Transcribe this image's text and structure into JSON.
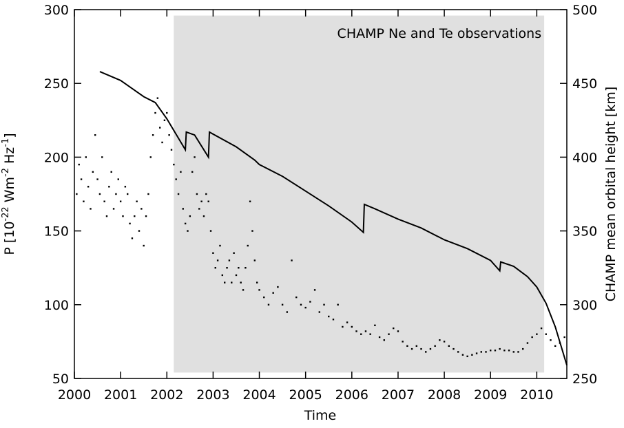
{
  "chart_data": {
    "type": "combo",
    "annotation": "CHAMP Ne and Te observations",
    "xlabel": "Time",
    "ylabel": [
      "P [10",
      "-22",
      " Wm",
      "-2",
      " Hz",
      "-1",
      "]"
    ],
    "y2label": "CHAMP mean orbital height [km]",
    "xlim": [
      2000,
      2010.65
    ],
    "ylim": [
      50,
      300
    ],
    "y2lim": [
      250,
      500
    ],
    "xticks": [
      2000,
      2001,
      2002,
      2003,
      2004,
      2005,
      2006,
      2007,
      2008,
      2009,
      2010
    ],
    "yticks": [
      50,
      100,
      150,
      200,
      250,
      300
    ],
    "y2ticks": [
      250,
      300,
      350,
      400,
      450,
      500
    ],
    "shade_x": [
      2002.15,
      2010.16
    ],
    "shade_y": [
      54,
      296
    ],
    "shade_color": "#e0e0e0",
    "series": [
      {
        "type": "scatter",
        "color": "#000000",
        "x": [
          2000.05,
          2000.1,
          2000.15,
          2000.2,
          2000.25,
          2000.3,
          2000.35,
          2000.4,
          2000.45,
          2000.5,
          2000.55,
          2000.6,
          2000.65,
          2000.7,
          2000.75,
          2000.8,
          2000.85,
          2000.9,
          2000.95,
          2001.0,
          2001.05,
          2001.1,
          2001.15,
          2001.2,
          2001.25,
          2001.3,
          2001.35,
          2001.4,
          2001.45,
          2001.5,
          2001.55,
          2001.6,
          2001.65,
          2001.7,
          2001.75,
          2001.8,
          2001.85,
          2001.9,
          2001.95,
          2002.0,
          2002.05,
          2002.1,
          2002.15,
          2002.2,
          2002.25,
          2002.3,
          2002.35,
          2002.4,
          2002.45,
          2002.5,
          2002.55,
          2002.6,
          2002.65,
          2002.7,
          2002.75,
          2002.8,
          2002.85,
          2002.9,
          2002.95,
          2003.0,
          2003.05,
          2003.1,
          2003.15,
          2003.2,
          2003.25,
          2003.3,
          2003.35,
          2003.4,
          2003.45,
          2003.5,
          2003.55,
          2003.6,
          2003.65,
          2003.7,
          2003.75,
          2003.8,
          2003.85,
          2003.9,
          2003.95,
          2004.0,
          2004.1,
          2004.2,
          2004.3,
          2004.4,
          2004.5,
          2004.6,
          2004.7,
          2004.8,
          2004.9,
          2005.0,
          2005.1,
          2005.2,
          2005.3,
          2005.4,
          2005.5,
          2005.6,
          2005.7,
          2005.8,
          2005.9,
          2006.0,
          2006.1,
          2006.2,
          2006.3,
          2006.4,
          2006.5,
          2006.6,
          2006.7,
          2006.8,
          2006.9,
          2007.0,
          2007.1,
          2007.2,
          2007.3,
          2007.4,
          2007.5,
          2007.6,
          2007.7,
          2007.8,
          2007.9,
          2008.0,
          2008.1,
          2008.2,
          2008.3,
          2008.4,
          2008.5,
          2008.6,
          2008.7,
          2008.8,
          2008.9,
          2009.0,
          2009.1,
          2009.2,
          2009.3,
          2009.4,
          2009.5,
          2009.6,
          2009.7,
          2009.8,
          2009.9,
          2010.0,
          2010.1,
          2010.2,
          2010.3,
          2010.4,
          2010.5,
          2010.6
        ],
        "values": [
          175,
          195,
          185,
          170,
          200,
          180,
          165,
          190,
          215,
          185,
          175,
          200,
          170,
          160,
          180,
          190,
          165,
          175,
          185,
          170,
          160,
          180,
          175,
          155,
          145,
          160,
          170,
          150,
          165,
          140,
          160,
          175,
          200,
          215,
          230,
          240,
          220,
          210,
          225,
          230,
          215,
          205,
          195,
          185,
          175,
          190,
          165,
          155,
          150,
          160,
          190,
          200,
          175,
          165,
          170,
          160,
          175,
          170,
          150,
          135,
          125,
          130,
          140,
          120,
          115,
          125,
          130,
          115,
          135,
          120,
          125,
          115,
          110,
          125,
          140,
          170,
          150,
          130,
          115,
          110,
          105,
          100,
          108,
          112,
          100,
          95,
          130,
          105,
          100,
          98,
          102,
          110,
          95,
          100,
          92,
          90,
          100,
          85,
          88,
          85,
          82,
          80,
          82,
          80,
          86,
          78,
          76,
          80,
          84,
          82,
          75,
          72,
          70,
          72,
          70,
          68,
          70,
          72,
          76,
          75,
          72,
          70,
          68,
          66,
          65,
          66,
          67,
          68,
          68,
          69,
          69,
          70,
          69,
          69,
          68,
          68,
          70,
          74,
          78,
          80,
          84,
          80,
          76,
          72,
          74,
          78
        ]
      },
      {
        "type": "line",
        "axis": "y2",
        "color": "#000000",
        "x": [
          2000.55,
          2001.0,
          2001.5,
          2001.75,
          2002.0,
          2002.4,
          2002.42,
          2002.6,
          2002.9,
          2002.92,
          2003.5,
          2003.9,
          2004.0,
          2004.5,
          2005.0,
          2005.5,
          2006.0,
          2006.25,
          2006.27,
          2006.5,
          2007.0,
          2007.5,
          2008.0,
          2008.5,
          2009.0,
          2009.2,
          2009.22,
          2009.5,
          2009.8,
          2010.0,
          2010.2,
          2010.4,
          2010.65
        ],
        "values": [
          458,
          452,
          441,
          437,
          426,
          405,
          417,
          415,
          400,
          417,
          407,
          398,
          395,
          387,
          377,
          367,
          356,
          349,
          368,
          365,
          358,
          352,
          344,
          338,
          330,
          323,
          329,
          326,
          319,
          312,
          301,
          285,
          259
        ]
      }
    ]
  }
}
